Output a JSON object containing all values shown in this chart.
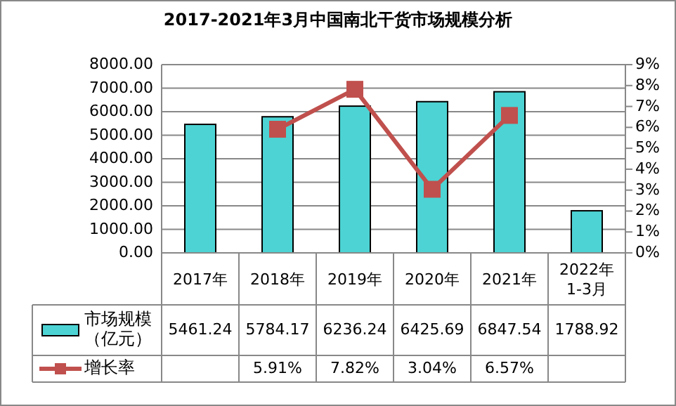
{
  "chart_data": {
    "type": "bar",
    "title": "2017-2021年3月中国南北干货市场规模分析",
    "categories": [
      "2017年",
      "2018年",
      "2019年",
      "2020年",
      "2021年",
      "2022年\n1-3月"
    ],
    "series": [
      {
        "name": "市场规模（亿元）",
        "color": "#4dd3d3",
        "values": [
          5461.24,
          5784.17,
          6236.24,
          6425.69,
          6847.54,
          1788.92
        ],
        "value_labels": [
          "5461.24",
          "5784.17",
          "6236.24",
          "6425.69",
          "6847.54",
          "1788.92"
        ]
      },
      {
        "name": "增长率",
        "type": "line",
        "axis": "y2",
        "color": "#c0504d",
        "marker": "square",
        "values": [
          null,
          5.91,
          7.82,
          3.04,
          6.57,
          null
        ],
        "value_labels": [
          null,
          "5.91%",
          "7.82%",
          "3.04%",
          "6.57%",
          null
        ]
      }
    ],
    "ylim": [
      0,
      8000
    ],
    "yticks": [
      {
        "value": 0,
        "label": "0.00"
      },
      {
        "value": 1000,
        "label": "1000.00"
      },
      {
        "value": 2000,
        "label": "2000.00"
      },
      {
        "value": 3000,
        "label": "3000.00"
      },
      {
        "value": 4000,
        "label": "4000.00"
      },
      {
        "value": 5000,
        "label": "5000.00"
      },
      {
        "value": 6000,
        "label": "6000.00"
      },
      {
        "value": 7000,
        "label": "7000.00"
      },
      {
        "value": 8000,
        "label": "8000.00"
      }
    ],
    "y2lim": [
      0,
      9
    ],
    "y2ticks": [
      {
        "value": 0,
        "label": "0%"
      },
      {
        "value": 1,
        "label": "1%"
      },
      {
        "value": 2,
        "label": "2%"
      },
      {
        "value": 3,
        "label": "3%"
      },
      {
        "value": 4,
        "label": "4%"
      },
      {
        "value": 5,
        "label": "5%"
      },
      {
        "value": 6,
        "label": "6%"
      },
      {
        "value": 7,
        "label": "7%"
      },
      {
        "value": 8,
        "label": "8%"
      },
      {
        "value": 9,
        "label": "9%"
      }
    ],
    "grid": "y",
    "legend": "bottom",
    "line_style": "solid"
  }
}
